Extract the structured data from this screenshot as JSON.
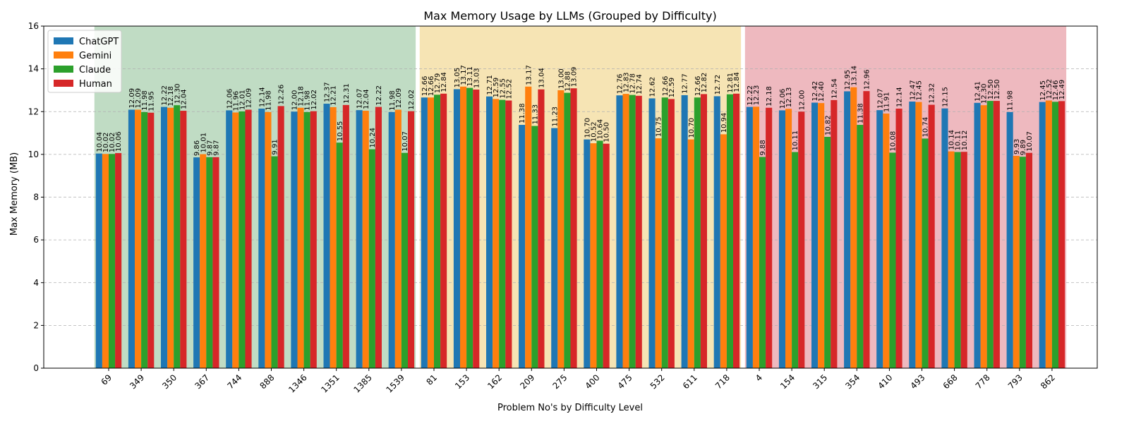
{
  "chart_data": {
    "type": "bar",
    "title": "Max Memory Usage by LLMs (Grouped by Difficulty)",
    "xlabel": "Problem No's by Difficulty Level",
    "ylabel": "Max Memory (MB)",
    "ylim": [
      0,
      16
    ],
    "yticks": [
      "0",
      "2",
      "4",
      "6",
      "8",
      "10",
      "12",
      "14",
      "16"
    ],
    "grid": true,
    "legend_position": "top-left",
    "categories": [
      "69",
      "349",
      "350",
      "367",
      "744",
      "888",
      "1346",
      "1351",
      "1385",
      "1539",
      "81",
      "153",
      "162",
      "209",
      "275",
      "400",
      "475",
      "532",
      "611",
      "718",
      "4",
      "154",
      "315",
      "354",
      "410",
      "493",
      "668",
      "778",
      "793",
      "862"
    ],
    "difficulty_bands": [
      {
        "start": 0,
        "end": 9,
        "color": "#c0dcc4"
      },
      {
        "start": 10,
        "end": 19,
        "color": "#f6e4b4"
      },
      {
        "start": 20,
        "end": 29,
        "color": "#eeb9bf"
      }
    ],
    "series": [
      {
        "name": "ChatGPT",
        "color": "#1f77b4",
        "values": [
          10.04,
          12.09,
          12.22,
          9.86,
          12.06,
          12.14,
          12.0,
          12.37,
          12.07,
          11.98,
          12.66,
          13.05,
          12.71,
          11.38,
          11.23,
          10.7,
          12.76,
          12.62,
          12.77,
          12.72,
          12.22,
          12.06,
          12.42,
          12.95,
          12.07,
          12.47,
          12.15,
          12.41,
          11.98,
          12.45
        ]
      },
      {
        "name": "Gemini",
        "color": "#ff7f0e",
        "values": [
          10.02,
          12.09,
          12.18,
          10.01,
          11.96,
          11.98,
          12.18,
          12.21,
          12.04,
          12.09,
          12.66,
          13.17,
          12.59,
          13.17,
          13.0,
          10.52,
          12.83,
          10.75,
          10.7,
          10.94,
          12.23,
          12.13,
          12.4,
          13.14,
          11.91,
          12.45,
          10.14,
          12.3,
          9.93,
          12.52
        ]
      },
      {
        "name": "Claude",
        "color": "#2ca02c",
        "values": [
          10.02,
          11.98,
          12.3,
          9.87,
          12.01,
          9.91,
          11.98,
          10.55,
          10.24,
          10.07,
          12.79,
          13.11,
          12.55,
          11.33,
          12.88,
          10.64,
          12.78,
          12.66,
          12.66,
          12.81,
          9.88,
          10.11,
          10.82,
          11.38,
          10.08,
          10.74,
          10.11,
          12.5,
          9.89,
          12.46
        ]
      },
      {
        "name": "Human",
        "color": "#d62728",
        "values": [
          10.06,
          11.95,
          12.04,
          9.87,
          12.09,
          12.26,
          12.02,
          12.31,
          12.22,
          12.02,
          12.84,
          13.03,
          12.52,
          13.04,
          13.09,
          10.5,
          12.74,
          12.59,
          12.82,
          12.84,
          12.18,
          12.0,
          12.54,
          12.96,
          12.14,
          12.32,
          10.12,
          12.5,
          10.07,
          12.49
        ]
      }
    ],
    "data_labels": [
      [
        "10.04",
        "12.09",
        "12.22",
        "9.86",
        "12.06",
        "12.14",
        "12.00",
        "12.37",
        "12.07",
        "11.98",
        "12.66",
        "13.05",
        "12.71",
        "11.38",
        "11.23",
        "10.70",
        "12.76",
        "12.62",
        "12.77",
        "12.72",
        "12.22",
        "12.06",
        "12.42",
        "12.95",
        "12.07",
        "12.47",
        "12.15",
        "12.41",
        "11.98",
        "12.45"
      ],
      [
        "10.02",
        "12.09",
        "12.18",
        "10.01",
        "11.96",
        "11.98",
        "12.18",
        "12.21",
        "12.04",
        "12.09",
        "12.66",
        "13.17",
        "12.59",
        "13.17",
        "13.00",
        "10.52",
        "12.83",
        "10.75",
        "10.70",
        "10.94",
        "12.23",
        "12.13",
        "12.40",
        "13.14",
        "11.91",
        "12.45",
        "10.14",
        "12.30",
        "9.93",
        "12.52"
      ],
      [
        "10.02",
        "11.98",
        "12.30",
        "9.87",
        "12.01",
        "9.91",
        "11.98",
        "10.55",
        "10.24",
        "10.07",
        "12.79",
        "13.11",
        "12.55",
        "11.33",
        "12.88",
        "10.64",
        "12.78",
        "12.66",
        "12.66",
        "12.81",
        "9.88",
        "10.11",
        "10.82",
        "11.38",
        "10.08",
        "10.74",
        "10.11",
        "12.50",
        "9.89",
        "12.46"
      ],
      [
        "10.06",
        "11.95",
        "12.04",
        "9.87",
        "12.09",
        "12.26",
        "12.02",
        "12.31",
        "12.22",
        "12.02",
        "12.84",
        "13.03",
        "12.52",
        "13.04",
        "13.09",
        "10.50",
        "12.74",
        "12.59",
        "12.82",
        "12.84",
        "12.18",
        "12.00",
        "12.54",
        "12.96",
        "12.14",
        "12.32",
        "10.12",
        "12.50",
        "10.07",
        "12.49"
      ]
    ]
  }
}
